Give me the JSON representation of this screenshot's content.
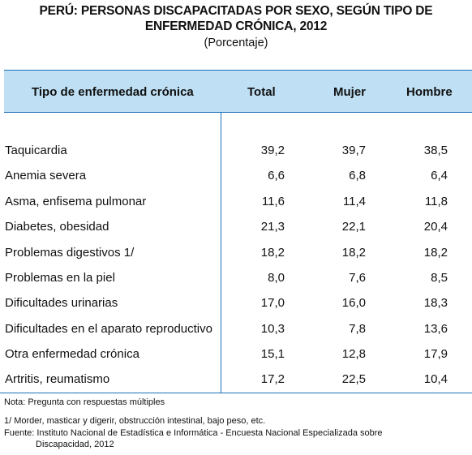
{
  "title": {
    "line1": "PERÚ: PERSONAS DISCAPACITADAS POR SEXO, SEGÚN TIPO DE",
    "line2": "ENFERMEDAD CRÓNICA, 2012",
    "subtitle": "(Porcentaje)"
  },
  "columns": [
    "Tipo de enfermedad crónica",
    "Total",
    "Mujer",
    "Hombre"
  ],
  "rows": [
    {
      "name": "Taquicardia",
      "total": "39,2",
      "mujer": "39,7",
      "hombre": "38,5"
    },
    {
      "name": "Anemia severa",
      "total": "6,6",
      "mujer": "6,8",
      "hombre": "6,4"
    },
    {
      "name": "Asma, enfisema pulmonar",
      "total": "11,6",
      "mujer": "11,4",
      "hombre": "11,8"
    },
    {
      "name": "Diabetes, obesidad",
      "total": "21,3",
      "mujer": "22,1",
      "hombre": "20,4"
    },
    {
      "name": "Problemas digestivos 1/",
      "total": "18,2",
      "mujer": "18,2",
      "hombre": "18,2"
    },
    {
      "name": "Problemas en la piel",
      "total": "8,0",
      "mujer": "7,6",
      "hombre": "8,5"
    },
    {
      "name": "Dificultades urinarias",
      "total": "17,0",
      "mujer": "16,0",
      "hombre": "18,3"
    },
    {
      "name": "Dificultades en el aparato reproductivo",
      "total": "10,3",
      "mujer": "7,8",
      "hombre": "13,6"
    },
    {
      "name": "Otra enfermedad crónica",
      "total": "15,1",
      "mujer": "12,8",
      "hombre": "17,9"
    },
    {
      "name": "Artritis, reumatismo",
      "total": "17,2",
      "mujer": "22,5",
      "hombre": "10,4"
    }
  ],
  "notes": {
    "nota": "Nota: Pregunta con respuestas múltiples",
    "footnote": "1/ Morder, masticar y digerir, obstrucción intestinal, bajo peso, etc.",
    "fuente": "Fuente: Instituto Nacional de Estadística e Informática - Encuesta Nacional Especializada sobre",
    "fuente_cont": "Discapacidad, 2012"
  },
  "colors": {
    "header_bg": "#bfe0f4",
    "rule": "#1d6fb8"
  }
}
